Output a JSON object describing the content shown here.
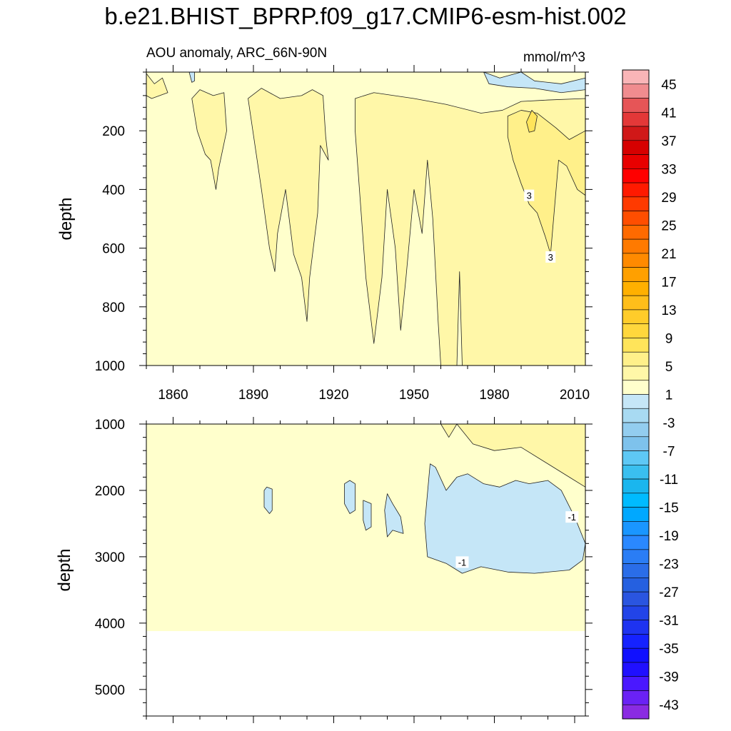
{
  "title": "b.e21.BHIST_BPRP.f09_g17.CMIP6-esm-hist.002",
  "chart_data": {
    "type": "heatmap",
    "subtitle_left": "AOU anomaly, ARC_66N-90N",
    "units": "mmol/m^3",
    "xlabel": "",
    "ylabel": "depth",
    "x_range": [
      1850,
      2014
    ],
    "x_ticks": [
      1860,
      1890,
      1920,
      1950,
      1980,
      2010
    ],
    "panels": [
      {
        "name": "upper",
        "ylim": [
          0,
          1000
        ],
        "y_ticks": [
          200,
          400,
          600,
          800,
          1000
        ],
        "background_level": "1",
        "features": [
          {
            "level": "1 to 2",
            "x": [
              1850,
              1857
            ],
            "y": [
              20,
              80
            ]
          },
          {
            "level": "1 to 2",
            "x": [
              1868,
              1878
            ],
            "y": [
              60,
              400
            ]
          },
          {
            "level": "1 to 2",
            "x": [
              1890,
              1918
            ],
            "y": [
              60,
              850
            ]
          },
          {
            "level": "1 to 2",
            "x": [
              1930,
              1963
            ],
            "y": [
              80,
              925
            ]
          },
          {
            "level": "1 to 2",
            "x": [
              1963,
              2014
            ],
            "y": [
              80,
              1000
            ]
          },
          {
            "level": "3 to 5",
            "x": [
              1984,
              2014
            ],
            "y": [
              130,
              620
            ]
          },
          {
            "level": "-3 to 1",
            "x": [
              1867,
              1869
            ],
            "y": [
              0,
              50
            ]
          },
          {
            "level": "-3 to 1",
            "x": [
              1977,
              2014
            ],
            "y": [
              0,
              60
            ]
          }
        ],
        "contour_labels": [
          {
            "text": "3",
            "x": 1993,
            "y": 420
          },
          {
            "text": "3",
            "x": 2001,
            "y": 630
          }
        ]
      },
      {
        "name": "lower",
        "ylim": [
          1000,
          5400
        ],
        "y_ticks": [
          1000,
          2000,
          3000,
          4000,
          5000
        ],
        "ocean_bottom": 4120,
        "background_level": "1",
        "features": [
          {
            "level": "1 to 2",
            "x": [
              1960,
              2014
            ],
            "y": [
              1000,
              1950
            ]
          },
          {
            "level": "-3 to 1",
            "x": [
              1895,
              1897
            ],
            "y": [
              1950,
              2350
            ]
          },
          {
            "level": "-3 to 1",
            "x": [
              1925,
              1935
            ],
            "y": [
              1850,
              2600
            ]
          },
          {
            "level": "-3 to 1",
            "x": [
              1940,
              1946
            ],
            "y": [
              2050,
              2700
            ]
          },
          {
            "level": "-3 to 1",
            "x": [
              1955,
              2014
            ],
            "y": [
              1600,
              3250
            ]
          }
        ],
        "contour_labels": [
          {
            "text": "-1",
            "x": 2009,
            "y": 2400
          },
          {
            "text": "-1",
            "x": 1968,
            "y": 3080
          }
        ]
      }
    ],
    "colorbar": {
      "labels": [
        "45",
        "41",
        "37",
        "33",
        "29",
        "25",
        "21",
        "17",
        "13",
        "9",
        "5",
        "1",
        "-3",
        "-7",
        "-11",
        "-15",
        "-19",
        "-23",
        "-27",
        "-31",
        "-35",
        "-39",
        "-43"
      ],
      "colors": [
        "#f9b5b7",
        "#f08c8f",
        "#e65557",
        "#e33838",
        "#d01818",
        "#d60000",
        "#e80000",
        "#ff0000",
        "#ff1a00",
        "#ff3a00",
        "#ff4e00",
        "#ff6a00",
        "#ff7a00",
        "#ff8a00",
        "#ffa000",
        "#ffb000",
        "#ffbe1a",
        "#ffcc2a",
        "#ffd73c",
        "#ffe45a",
        "#fff08a",
        "#fff7a8",
        "#ffffcc",
        "#c5e6f7",
        "#a8daf2",
        "#93cdef",
        "#7ec2ec",
        "#5ec8f5",
        "#3abfef",
        "#1ab6ee",
        "#00bbff",
        "#00a8ff",
        "#1a96ff",
        "#2a88ff",
        "#2a7df5",
        "#2a6de8",
        "#2560e0",
        "#2a55e0",
        "#2244e8",
        "#1e33f0",
        "#1522ff",
        "#1010ff",
        "#2010ff",
        "#4a18ff",
        "#6a22f5",
        "#8a2be2"
      ]
    }
  }
}
